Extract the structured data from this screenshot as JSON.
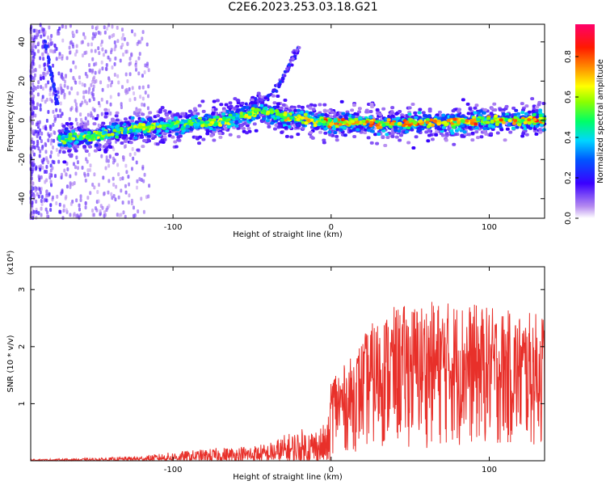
{
  "title": "C2E6.2023.253.03.18.G21",
  "chart_data": [
    {
      "type": "heatmap",
      "xlabel": "Height of straight line (km)",
      "ylabel": "Frequency (Hz)",
      "xlim": [
        -190,
        135
      ],
      "ylim": [
        -50,
        49
      ],
      "xticks": [
        -100,
        0,
        100
      ],
      "yticks": [
        -40,
        -20,
        0,
        20,
        40
      ],
      "colorbar": {
        "label": "Normalized spectral amplitude",
        "range": [
          0.0,
          0.96
        ],
        "ticks": [
          "0.0",
          "0.2",
          "0.4",
          "0.6",
          "0.8"
        ]
      },
      "ridge": {
        "x": [
          -170,
          -150,
          -130,
          -110,
          -90,
          -70,
          -55,
          -40,
          -30,
          -15,
          0,
          20,
          40,
          60,
          80,
          100,
          120,
          135
        ],
        "y": [
          -9,
          -8,
          -5,
          -3,
          -2,
          -1,
          3,
          5,
          2,
          0,
          -1,
          -1,
          -2,
          -1,
          -1,
          0,
          0,
          0
        ]
      },
      "branch": {
        "x": [
          -60,
          -50,
          -40,
          -33,
          -28,
          -20
        ],
        "y": [
          2,
          8,
          12,
          18,
          26,
          38
        ]
      }
    },
    {
      "type": "line",
      "xlabel": "Height of straight line (km)",
      "ylabel": "SNR (10 * v/v)",
      "scale_label": "(x10⁴)",
      "xlim": [
        -190,
        135
      ],
      "ylim": [
        0,
        3.4
      ],
      "xticks": [
        -100,
        0,
        100
      ],
      "yticks": [
        1,
        2,
        3
      ],
      "series": [
        {
          "color": "#e8302a",
          "envelope_x": [
            -190,
            -150,
            -120,
            -100,
            -80,
            -60,
            -40,
            -30,
            -20,
            -10,
            -2,
            0,
            10,
            25,
            40,
            60,
            80,
            100,
            120,
            135
          ],
          "envelope_y": [
            0.02,
            0.04,
            0.08,
            0.15,
            0.2,
            0.25,
            0.3,
            0.45,
            0.55,
            0.6,
            0.65,
            1.6,
            1.7,
            2.4,
            2.7,
            2.8,
            2.8,
            2.7,
            2.6,
            2.6
          ]
        }
      ]
    }
  ]
}
